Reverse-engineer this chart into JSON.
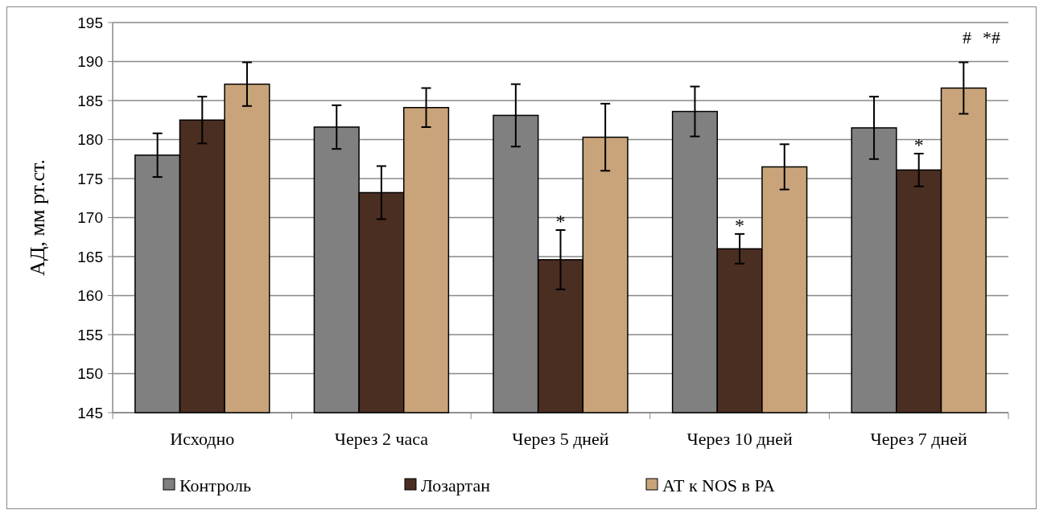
{
  "chart_data": {
    "type": "bar",
    "ylabel": "АД, мм рт.ст.",
    "categories": [
      "Исходно",
      "Через 2 часа",
      "Через 5 дней",
      "Через 10 дней",
      "Через 7 дней"
    ],
    "series": [
      {
        "name": "Контроль",
        "color": "#808080",
        "values": [
          178,
          181.6,
          183.1,
          183.6,
          181.5
        ],
        "errors": [
          2.8,
          2.8,
          4,
          3.2,
          4
        ]
      },
      {
        "name": "Лозартан",
        "color": "#4a2e22",
        "values": [
          182.5,
          173.2,
          164.6,
          166,
          176.1
        ],
        "errors": [
          3,
          3.4,
          3.8,
          1.9,
          2.1
        ]
      },
      {
        "name": "АТ к NOS в РА",
        "color": "#c9a47a",
        "values": [
          187.1,
          184.1,
          180.3,
          176.5,
          186.6
        ],
        "errors": [
          2.8,
          2.5,
          4.3,
          2.9,
          3.3
        ]
      }
    ],
    "ylim": [
      145,
      195
    ],
    "yticks": [
      145,
      150,
      155,
      160,
      165,
      170,
      175,
      180,
      185,
      190,
      195
    ],
    "grid": "y",
    "legend": "bottom",
    "annotations": [
      {
        "text": "*",
        "x": "Через 5 дней",
        "y": 168.4
      },
      "#",
      {
        "text": "*",
        "x": "Через 10 дней",
        "y": 167.9
      },
      "*#",
      {
        "text": "*",
        "x": "Через 7 дней",
        "y": 178.2
      }
    ]
  }
}
